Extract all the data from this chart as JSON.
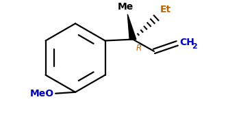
{
  "bg_color": "#ffffff",
  "line_color": "#000000",
  "label_color_meo": "#0000bb",
  "label_color_me": "#000000",
  "label_color_et": "#bb6600",
  "label_color_r": "#bb6600",
  "label_color_ch2": "#0000bb",
  "figsize": [
    3.33,
    1.77
  ],
  "dpi": 100,
  "bond_lw": 1.6,
  "font_size_labels": 10,
  "font_size_r": 8.5,
  "meo_label": "MeO",
  "me_label": "Me",
  "et_label": "Et",
  "r_label": "R",
  "ch2_label": "CH",
  "ch2_sub": "2"
}
